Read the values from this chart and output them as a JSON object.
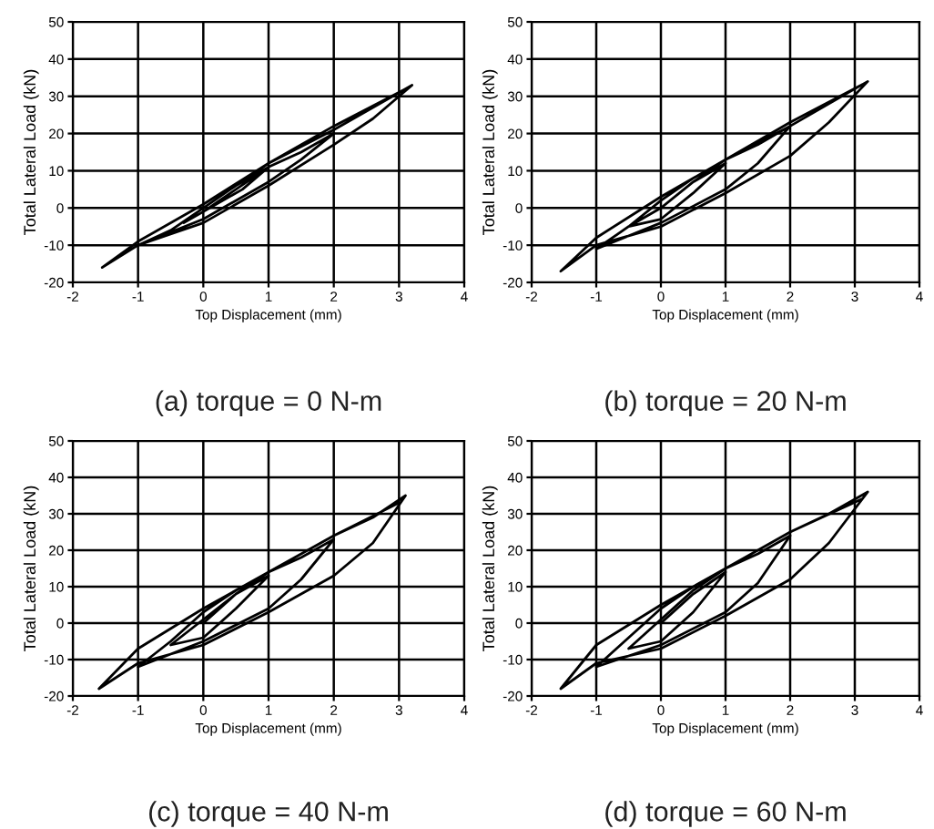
{
  "chart_data": [
    {
      "type": "line",
      "title": "(a) torque = 0 N-m",
      "xlabel": "Top Displacement (mm)",
      "ylabel": "Total Lateral Load (kN)",
      "xlim": [
        -2,
        4
      ],
      "ylim": [
        -20,
        50
      ],
      "xticks": [
        -2,
        -1,
        0,
        1,
        2,
        3,
        4
      ],
      "yticks": [
        -20,
        -10,
        0,
        10,
        20,
        30,
        40,
        50
      ],
      "grid": true,
      "marker": "none",
      "series": [
        {
          "color": "#000000",
          "x": [
            0,
            0.5,
            1.0,
            0.6,
            0,
            -0.3,
            0,
            0.5,
            1,
            1.5,
            2,
            1.5,
            1,
            0,
            -1,
            -0.5,
            0,
            0.5,
            1,
            2,
            2.6,
            3.2,
            2.6,
            2,
            1,
            0,
            -1,
            -1.55,
            -1,
            0,
            1,
            2,
            3.1
          ],
          "values": [
            0,
            6,
            11,
            5,
            -1,
            -4,
            -1,
            5,
            11,
            15,
            20,
            13,
            7,
            -3,
            -10,
            -6,
            0,
            6,
            12,
            21,
            27,
            33,
            24,
            17,
            6,
            -4,
            -10,
            -16,
            -9,
            1,
            12,
            22,
            32
          ]
        }
      ]
    },
    {
      "type": "line",
      "title": "(b) torque = 20 N-m",
      "xlabel": "Top Displacement (mm)",
      "ylabel": "Total Lateral Load (kN)",
      "xlim": [
        -2,
        4
      ],
      "ylim": [
        -20,
        50
      ],
      "xticks": [
        -2,
        -1,
        0,
        1,
        2,
        3,
        4
      ],
      "yticks": [
        -20,
        -10,
        0,
        10,
        20,
        30,
        40,
        50
      ],
      "grid": true,
      "marker": "none",
      "series": [
        {
          "color": "#000000",
          "x": [
            0,
            0.5,
            1,
            0.5,
            0,
            -0.5,
            0,
            0.5,
            1,
            1.5,
            2,
            1.5,
            1,
            0,
            -1,
            -0.5,
            0,
            0.5,
            1,
            2,
            2.6,
            3.2,
            2.6,
            2,
            1,
            0,
            -1,
            -1.55,
            -1,
            0,
            1,
            2,
            3.1
          ],
          "values": [
            0,
            7,
            12,
            4,
            -3,
            -5,
            0,
            7,
            13,
            17,
            22,
            12,
            5,
            -4,
            -11,
            -5,
            2,
            8,
            13,
            22,
            28,
            34,
            23,
            14,
            4,
            -5,
            -10,
            -17,
            -8,
            3,
            13,
            23,
            33
          ]
        }
      ]
    },
    {
      "type": "line",
      "title": "(c) torque = 40 N-m",
      "xlabel": "Top Displacement (mm)",
      "ylabel": "Total Lateral Load (kN)",
      "xlim": [
        -2,
        4
      ],
      "ylim": [
        -20,
        50
      ],
      "xticks": [
        -2,
        -1,
        0,
        1,
        2,
        3,
        4
      ],
      "yticks": [
        -20,
        -10,
        0,
        10,
        20,
        30,
        40,
        50
      ],
      "grid": true,
      "marker": "none",
      "series": [
        {
          "color": "#000000",
          "x": [
            0,
            0.5,
            1,
            0.5,
            0,
            -0.5,
            0,
            0.5,
            1,
            1.5,
            2,
            1.5,
            1,
            0,
            -1,
            -0.5,
            0,
            0.5,
            1,
            2,
            2.6,
            3.1,
            2.6,
            2,
            1,
            0,
            -1,
            -1.6,
            -1,
            0,
            1,
            2,
            3.0
          ],
          "values": [
            0,
            8,
            13,
            4,
            -4,
            -6,
            1,
            8,
            14,
            18,
            23,
            12,
            4,
            -5,
            -12,
            -5,
            3,
            9,
            14,
            24,
            29,
            35,
            22,
            13,
            3,
            -6,
            -11,
            -18,
            -7,
            4,
            14,
            24,
            33
          ]
        }
      ]
    },
    {
      "type": "line",
      "title": "(d) torque = 60 N-m",
      "xlabel": "Top Displacement (mm)",
      "ylabel": "Total Lateral Load (kN)",
      "xlim": [
        -2,
        4
      ],
      "ylim": [
        -20,
        50
      ],
      "xticks": [
        -2,
        -1,
        0,
        1,
        2,
        3,
        4
      ],
      "yticks": [
        -20,
        -10,
        0,
        10,
        20,
        30,
        40,
        50
      ],
      "grid": true,
      "marker": "none",
      "series": [
        {
          "color": "#000000",
          "x": [
            0,
            0.5,
            1,
            0.5,
            0,
            -0.5,
            0,
            0.5,
            1,
            1.5,
            2,
            1.5,
            1,
            0,
            -1,
            -0.5,
            0,
            0.5,
            1,
            2,
            2.6,
            3.2,
            2.6,
            2,
            1,
            0,
            -1,
            -1.55,
            -1,
            0,
            1,
            2,
            3.1
          ],
          "values": [
            0,
            8,
            14,
            3,
            -5,
            -7,
            1,
            9,
            15,
            19,
            24,
            11,
            3,
            -6,
            -12,
            -4,
            4,
            10,
            15,
            25,
            30,
            36,
            22,
            12,
            2,
            -7,
            -11,
            -18,
            -6,
            5,
            15,
            25,
            34
          ]
        }
      ]
    }
  ]
}
